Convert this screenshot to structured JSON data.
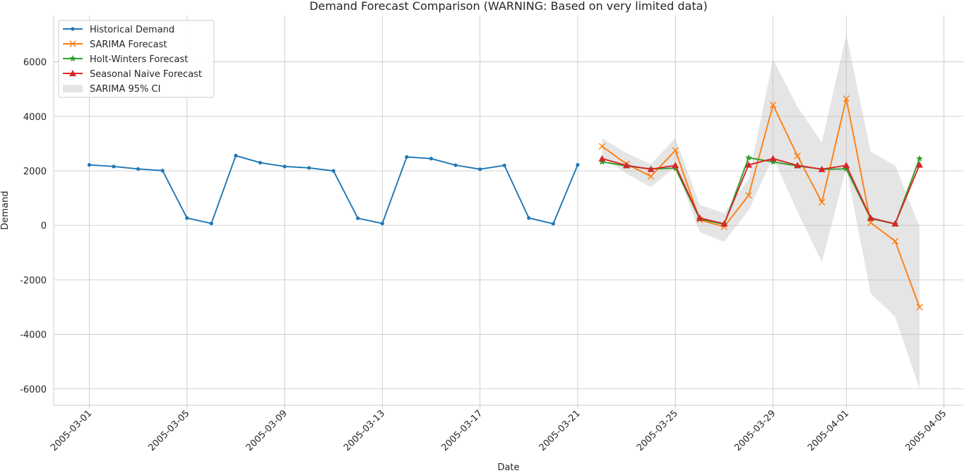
{
  "chart_data": {
    "type": "line",
    "title": "Demand Forecast Comparison (WARNING: Based on very limited data)",
    "xlabel": "Date",
    "ylabel": "Demand",
    "xlim": [
      "2005-02-27 13:00",
      "2005-04-05 19:00"
    ],
    "ylim": [
      -6600,
      7700
    ],
    "x_ticks": [
      "2005-03-01",
      "2005-03-05",
      "2005-03-09",
      "2005-03-13",
      "2005-03-17",
      "2005-03-21",
      "2005-03-25",
      "2005-03-29",
      "2005-04-01",
      "2005-04-05"
    ],
    "y_ticks": [
      -6000,
      -4000,
      -2000,
      0,
      2000,
      4000,
      6000
    ],
    "grid": true,
    "legend_position": "top-left",
    "series": [
      {
        "name": "Historical Demand",
        "color": "#1f77b4",
        "marker": "dot",
        "x": [
          "2005-03-01",
          "2005-03-02",
          "2005-03-03",
          "2005-03-04",
          "2005-03-05",
          "2005-03-06",
          "2005-03-07",
          "2005-03-08",
          "2005-03-09",
          "2005-03-10",
          "2005-03-11",
          "2005-03-12",
          "2005-03-13",
          "2005-03-14",
          "2005-03-15",
          "2005-03-16",
          "2005-03-17",
          "2005-03-18",
          "2005-03-19",
          "2005-03-20",
          "2005-03-21"
        ],
        "values": [
          2220,
          2160,
          2070,
          2010,
          270,
          70,
          2560,
          2300,
          2160,
          2110,
          2000,
          260,
          70,
          2510,
          2450,
          2210,
          2060,
          2200,
          270,
          60,
          2220
        ]
      },
      {
        "name": "SARIMA Forecast",
        "color": "#ff7f0e",
        "marker": "x",
        "x": [
          "2005-03-22",
          "2005-03-23",
          "2005-03-24",
          "2005-03-25",
          "2005-03-26",
          "2005-03-27",
          "2005-03-28",
          "2005-03-29",
          "2005-03-30",
          "2005-03-31",
          "2005-04-01",
          "2005-04-02",
          "2005-04-03",
          "2005-04-04"
        ],
        "values": [
          2900,
          2250,
          1800,
          2750,
          200,
          -50,
          1100,
          4420,
          2550,
          850,
          4650,
          100,
          -580,
          -3000
        ]
      },
      {
        "name": "Holt-Winters Forecast",
        "color": "#2ca02c",
        "marker": "star",
        "x": [
          "2005-03-22",
          "2005-03-23",
          "2005-03-24",
          "2005-03-25",
          "2005-03-26",
          "2005-03-27",
          "2005-03-28",
          "2005-03-29",
          "2005-03-30",
          "2005-03-31",
          "2005-04-01",
          "2005-04-02",
          "2005-04-03",
          "2005-04-04"
        ],
        "values": [
          2330,
          2180,
          2070,
          2100,
          230,
          40,
          2480,
          2330,
          2180,
          2060,
          2070,
          250,
          50,
          2450
        ]
      },
      {
        "name": "Seasonal Naive Forecast",
        "color": "#d62728",
        "marker": "triangle",
        "x": [
          "2005-03-22",
          "2005-03-23",
          "2005-03-24",
          "2005-03-25",
          "2005-03-26",
          "2005-03-27",
          "2005-03-28",
          "2005-03-29",
          "2005-03-30",
          "2005-03-31",
          "2005-04-01",
          "2005-04-02",
          "2005-04-03",
          "2005-04-04"
        ],
        "values": [
          2450,
          2200,
          2060,
          2200,
          270,
          60,
          2220,
          2450,
          2200,
          2060,
          2200,
          270,
          60,
          2220
        ]
      }
    ],
    "band": {
      "name": "SARIMA 95% CI",
      "color": "#bfbfbf",
      "x": [
        "2005-03-22",
        "2005-03-23",
        "2005-03-24",
        "2005-03-25",
        "2005-03-26",
        "2005-03-27",
        "2005-03-28",
        "2005-03-29",
        "2005-03-30",
        "2005-03-31",
        "2005-04-01",
        "2005-04-02",
        "2005-04-03",
        "2005-04-04"
      ],
      "lower": [
        2500,
        1900,
        1400,
        2150,
        -250,
        -600,
        550,
        2500,
        500,
        -1350,
        2100,
        -2500,
        -3350,
        -6000
      ],
      "upper": [
        3200,
        2650,
        2250,
        3200,
        750,
        450,
        1700,
        6100,
        4350,
        3050,
        7000,
        2700,
        2200,
        -50
      ]
    }
  }
}
